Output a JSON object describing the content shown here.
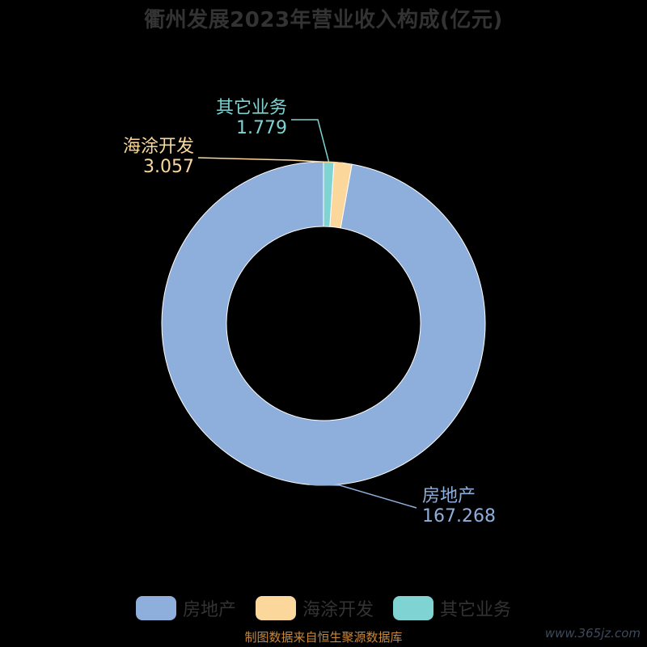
{
  "chart_data": {
    "type": "pie",
    "title": "衢州发展2023年营业收入构成(亿元)",
    "categories": [
      "房地产",
      "海涂开发",
      "其它业务"
    ],
    "values": [
      167.268,
      3.057,
      1.779
    ],
    "value_labels": [
      "167.268",
      "3.057",
      "1.779"
    ],
    "colors": [
      "#8eaedb",
      "#fcd79b",
      "#7fd3d3"
    ],
    "donut": true,
    "legend_placement": "bottom"
  },
  "footer": {
    "source": "制图数据来自恒生聚源数据库",
    "watermark": "www.365jz.com"
  }
}
